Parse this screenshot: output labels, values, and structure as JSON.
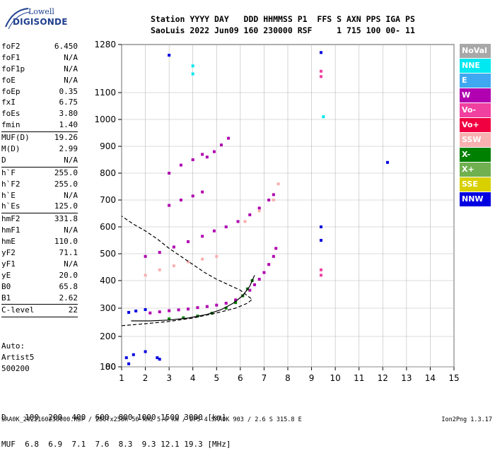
{
  "logo": {
    "line1": "Lowell",
    "line2": "DIGISONDE"
  },
  "header": {
    "labels": "Station YYYY DAY   DDD HHMMSS P1  FFS S AXN PPS IGA PS",
    "values": "SaoLuis 2022 Jun09 160 230000 RSF     1 715 100 00- 11"
  },
  "params": [
    {
      "name": "foF2",
      "value": "6.450"
    },
    {
      "name": "foF1",
      "value": "N/A"
    },
    {
      "name": "foF1p",
      "value": "N/A"
    },
    {
      "name": "foE",
      "value": "N/A"
    },
    {
      "name": "foEp",
      "value": "0.35"
    },
    {
      "name": "fxI",
      "value": "6.75"
    },
    {
      "name": "foEs",
      "value": "3.80"
    },
    {
      "name": "fmin",
      "value": "1.40"
    },
    {
      "sep": true
    },
    {
      "name": "MUF(D)",
      "value": "19.26"
    },
    {
      "name": "M(D)",
      "value": "2.99"
    },
    {
      "name": "D",
      "value": "N/A"
    },
    {
      "sep": true
    },
    {
      "name": "h`F",
      "value": "255.0"
    },
    {
      "name": "h`F2",
      "value": "255.0"
    },
    {
      "name": "h`E",
      "value": "N/A"
    },
    {
      "name": "h`Es",
      "value": "125.0"
    },
    {
      "sep": true
    },
    {
      "name": "hmF2",
      "value": "331.8"
    },
    {
      "name": "hmF1",
      "value": "N/A"
    },
    {
      "name": "hmE",
      "value": "110.0"
    },
    {
      "name": "yF2",
      "value": "71.1"
    },
    {
      "name": "yF1",
      "value": "N/A"
    },
    {
      "name": "yE",
      "value": "20.0"
    },
    {
      "name": "B0",
      "value": "65.8"
    },
    {
      "name": "B1",
      "value": "2.62"
    },
    {
      "sep": true
    },
    {
      "name": "C-level",
      "value": "22"
    },
    {
      "sep": true
    }
  ],
  "auto": {
    "line1": "Auto:",
    "line2": "Artist5",
    "line3": "500200"
  },
  "dmuf": {
    "line1": "D    100  200  400  600  800 1000 1500 3000 [km]",
    "line2": "MUF  6.8  6.9  7.1  7.6  8.3  9.3 12.1 19.3 [MHz]"
  },
  "footer": {
    "left": "SAA0K_2022160230000.RSF / 280fx256h 50 kHz 5.0 km / DPS-4 SAA0K 903 / 2.6 S 315.8 E",
    "right": "Ion2Png 1.3.17"
  },
  "legend": [
    {
      "label": "NoVal",
      "color": "#a8a8a8"
    },
    {
      "label": "NNE",
      "color": "#00e8f0"
    },
    {
      "label": "E",
      "color": "#40a8f0"
    },
    {
      "label": "W",
      "color": "#b000b0"
    },
    {
      "label": "Vo-",
      "color": "#f040a0"
    },
    {
      "label": "Vo+",
      "color": "#f00040"
    },
    {
      "label": "SSW",
      "color": "#f8b0b0"
    },
    {
      "label": "X-",
      "color": "#008000"
    },
    {
      "label": "X+",
      "color": "#70b050"
    },
    {
      "label": "SSE",
      "color": "#d8d000"
    },
    {
      "label": "NNW",
      "color": "#0000e0"
    }
  ],
  "chart_data": {
    "type": "scatter",
    "title": "",
    "xlabel": "",
    "ylabel": "",
    "xlim": [
      1,
      15
    ],
    "ylim": [
      80,
      1280
    ],
    "y_scale": "nonlinear-ionogram",
    "x_ticks": [
      1,
      2,
      3,
      4,
      5,
      6,
      7,
      8,
      9,
      10,
      11,
      12,
      13,
      14,
      15
    ],
    "y_ticks": [
      80,
      100,
      200,
      300,
      400,
      500,
      600,
      700,
      800,
      900,
      1000,
      1100,
      1280
    ],
    "grid": true,
    "series": [
      {
        "name": "W",
        "color": "#b000b0",
        "points": [
          [
            2.2,
            283
          ],
          [
            2.6,
            287
          ],
          [
            3.0,
            291
          ],
          [
            3.4,
            294
          ],
          [
            3.8,
            297
          ],
          [
            4.2,
            302
          ],
          [
            4.6,
            306
          ],
          [
            5.0,
            311
          ],
          [
            5.4,
            318
          ],
          [
            5.8,
            330
          ],
          [
            6.1,
            345
          ],
          [
            6.4,
            365
          ],
          [
            6.6,
            385
          ],
          [
            6.8,
            405
          ],
          [
            7.0,
            430
          ],
          [
            7.2,
            460
          ],
          [
            7.4,
            490
          ],
          [
            7.5,
            520
          ]
        ]
      },
      {
        "name": "W",
        "color": "#b000b0",
        "points": [
          [
            2.0,
            490
          ],
          [
            2.6,
            505
          ],
          [
            3.2,
            525
          ],
          [
            3.8,
            545
          ],
          [
            4.4,
            565
          ],
          [
            4.9,
            585
          ],
          [
            5.4,
            600
          ],
          [
            5.9,
            620
          ],
          [
            6.4,
            645
          ],
          [
            6.8,
            670
          ],
          [
            7.2,
            700
          ],
          [
            7.4,
            720
          ]
        ]
      },
      {
        "name": "W",
        "color": "#b000b0",
        "points": [
          [
            3.0,
            680
          ],
          [
            3.5,
            700
          ],
          [
            4.0,
            715
          ],
          [
            4.4,
            730
          ]
        ]
      },
      {
        "name": "W",
        "color": "#b000b0",
        "points": [
          [
            3.0,
            800
          ],
          [
            3.5,
            830
          ],
          [
            4.0,
            850
          ],
          [
            4.4,
            870
          ]
        ]
      },
      {
        "name": "W",
        "color": "#b000b0",
        "points": [
          [
            4.6,
            860
          ],
          [
            4.9,
            880
          ],
          [
            5.2,
            905
          ],
          [
            5.5,
            930
          ]
        ]
      },
      {
        "name": "SSW",
        "color": "#f8b0b0",
        "points": [
          [
            2.0,
            420
          ],
          [
            2.6,
            440
          ],
          [
            3.2,
            455
          ],
          [
            3.8,
            470
          ],
          [
            4.4,
            480
          ],
          [
            5.0,
            490
          ]
        ]
      },
      {
        "name": "SSW",
        "color": "#f8b0b0",
        "points": [
          [
            6.2,
            620
          ],
          [
            6.8,
            660
          ],
          [
            7.4,
            700
          ],
          [
            7.6,
            760
          ]
        ]
      },
      {
        "name": "X-",
        "color": "#008000",
        "points": [
          [
            3.0,
            262
          ],
          [
            3.6,
            266
          ],
          [
            4.2,
            272
          ],
          [
            4.8,
            282
          ],
          [
            5.4,
            300
          ],
          [
            5.8,
            320
          ],
          [
            6.1,
            345
          ],
          [
            6.3,
            370
          ],
          [
            6.5,
            400
          ]
        ]
      },
      {
        "name": "NNW",
        "color": "#0000e0",
        "points": [
          [
            1.3,
            285
          ],
          [
            1.6,
            290
          ],
          [
            2.0,
            295
          ],
          [
            1.2,
            130
          ],
          [
            1.5,
            140
          ],
          [
            2.0,
            150
          ],
          [
            2.5,
            130
          ],
          [
            1.3,
            110
          ],
          [
            2.6,
            125
          ],
          [
            3.0,
            1240
          ],
          [
            9.4,
            1250
          ],
          [
            9.4,
            600
          ],
          [
            9.4,
            550
          ],
          [
            12.2,
            840
          ]
        ]
      },
      {
        "name": "Vo-",
        "color": "#f040a0",
        "points": [
          [
            9.4,
            1180
          ],
          [
            9.4,
            1160
          ],
          [
            9.4,
            440
          ],
          [
            9.4,
            420
          ]
        ]
      },
      {
        "name": "NNE",
        "color": "#00e8f0",
        "points": [
          [
            4.0,
            1200
          ],
          [
            4.0,
            1170
          ],
          [
            9.5,
            1010
          ]
        ]
      },
      {
        "name": "profile",
        "color": "#000000",
        "points": [
          [
            1.0,
            238
          ],
          [
            2.0,
            245
          ],
          [
            3.0,
            253
          ],
          [
            4.0,
            265
          ],
          [
            5.0,
            283
          ],
          [
            5.8,
            300
          ],
          [
            6.3,
            318
          ],
          [
            6.5,
            331.8
          ],
          [
            6.3,
            345
          ],
          [
            6.0,
            365
          ],
          [
            5.5,
            385
          ],
          [
            5.0,
            405
          ],
          [
            4.5,
            430
          ],
          [
            4.0,
            460
          ],
          [
            3.5,
            490
          ],
          [
            3.0,
            520
          ],
          [
            2.5,
            555
          ],
          [
            2.0,
            585
          ],
          [
            1.5,
            610
          ],
          [
            1.0,
            640
          ]
        ]
      },
      {
        "name": "trace",
        "color": "#000000",
        "points": [
          [
            1.4,
            255
          ],
          [
            2.2,
            255
          ],
          [
            3.0,
            258
          ],
          [
            3.8,
            265
          ],
          [
            4.6,
            278
          ],
          [
            5.2,
            295
          ],
          [
            5.7,
            318
          ],
          [
            6.1,
            345
          ],
          [
            6.4,
            380
          ],
          [
            6.6,
            420
          ]
        ]
      }
    ]
  }
}
